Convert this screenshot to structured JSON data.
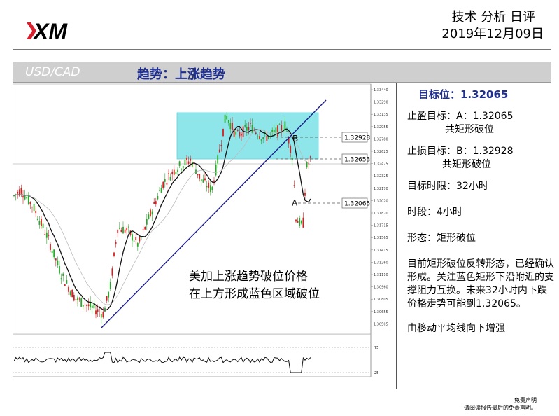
{
  "header": {
    "brand": "XM",
    "report_type": "技术 分析 日评",
    "date": "2019年12月09日"
  },
  "bar": {
    "symbol": "USD/CAD",
    "trend": "趋势：上涨趋势"
  },
  "chart_data": {
    "type": "candlestick",
    "price_levels": [
      {
        "label": "1.32928",
        "value": 1.32928
      },
      {
        "label": "1.32653",
        "value": 1.32653
      },
      {
        "label": "1.32065",
        "value": 1.32065
      }
    ],
    "y_ticks": [
      "1.33440",
      "1.33290",
      "1.33135",
      "1.32955",
      "1.32780",
      "1.32625",
      "1.32475",
      "1.32325",
      "1.32170",
      "1.32020",
      "1.31870",
      "1.31715",
      "1.31565",
      "1.31415",
      "1.31260",
      "1.31110",
      "1.30960",
      "1.30805",
      "1.30655",
      "1.30505"
    ],
    "ylim": [
      1.304,
      1.3352
    ],
    "annotations": [
      {
        "label": "B"
      },
      {
        "label": "A"
      }
    ],
    "caption_lines": [
      "美加上涨趋势破位价格",
      "在上方形成蓝色区域破位"
    ],
    "oscillator_ticks": [
      "75",
      "25"
    ],
    "colors": {
      "up": "#2aa82a",
      "down": "#d42020",
      "box": "#7fe5ea",
      "trendline": "#1a1a8c",
      "ma": "#111111"
    }
  },
  "panel": {
    "target": "目标位：1.32065",
    "tp_line1": "止盈目标：A：1.32065",
    "tp_line2": "共矩形破位",
    "sl_line1": "止损目标：B：1.32928",
    "sl_line2": "共矩形破位",
    "horizon": "目标时限：32小时",
    "timeframe": "时段：4小时",
    "pattern": "形态：矩形破位",
    "analysis": "目前矩形破位反转形态，已经确认形成。关注蓝色矩形下沿附近的支撑阻力互换。未来32小时内下跌价格走势可能到1.32065。",
    "note": "由移动平均线向下增强"
  },
  "footer": {
    "disclaimer_title": "免责声明",
    "disclaimer_text": "请阅读报告最后的免责声明。"
  }
}
